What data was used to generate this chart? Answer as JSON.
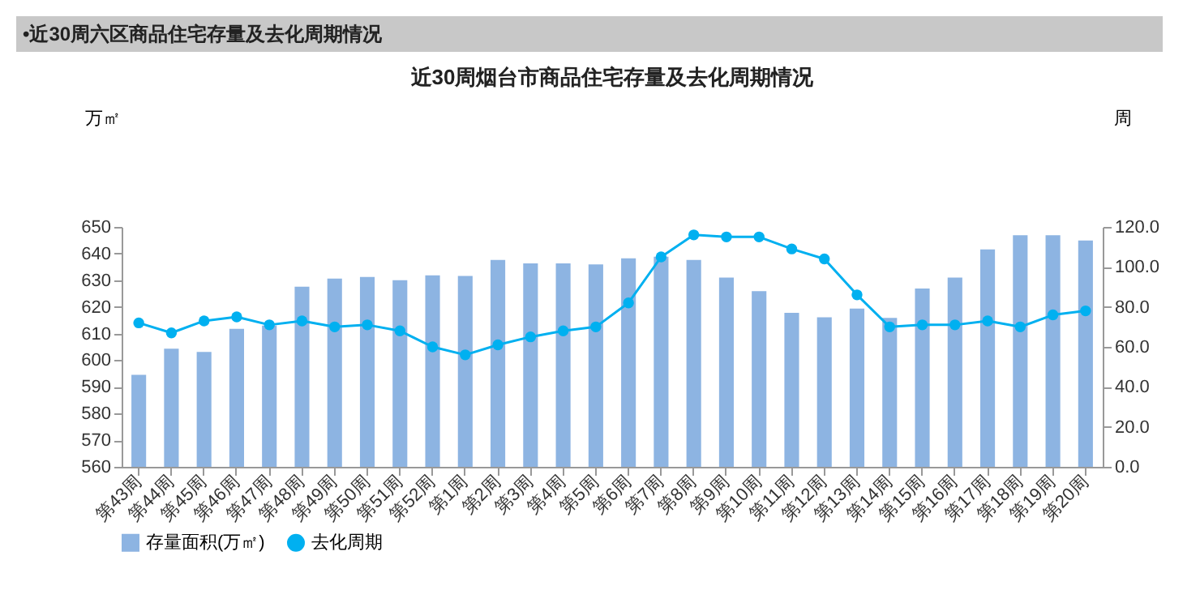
{
  "chart_data": {
    "type": "bar",
    "title": "•近30周六区商品住宅存量及去化周期情况",
    "subtitle": "近30周烟台市商品住宅存量及去化周期情况",
    "ylabel": "万㎡",
    "y2label": "周",
    "categories": [
      "第43周",
      "第44周",
      "第45周",
      "第46周",
      "第47周",
      "第48周",
      "第49周",
      "第50周",
      "第51周",
      "第52周",
      "第1周",
      "第2周",
      "第3周",
      "第4周",
      "第5周",
      "第6周",
      "第7周",
      "第8周",
      "第9周",
      "第10周",
      "第11周",
      "第12周",
      "第13周",
      "第14周",
      "第15周",
      "第16周",
      "第17周",
      "第18周",
      "第19周",
      "第20周"
    ],
    "series": [
      {
        "name": "存量面积(万㎡)",
        "color": "#8db4e2",
        "values": [
          594.5,
          604.3,
          603.1,
          611.8,
          613,
          627.6,
          630.6,
          631.2,
          630,
          631.8,
          631.6,
          637.6,
          636.3,
          636.3,
          635.9,
          638.2,
          638.8,
          637.6,
          631,
          625.9,
          617.8,
          616.1,
          619.4,
          615.9,
          626.9,
          631,
          641.6,
          646.9,
          646.9,
          644.9
        ]
      },
      {
        "name": "去化周期",
        "type": "line",
        "axis": "y2",
        "color": "#00b0f0",
        "marker": "circle",
        "values": [
          72,
          67,
          73,
          75,
          71,
          73,
          70,
          71,
          68,
          60,
          56,
          61,
          65,
          68,
          70,
          82,
          105,
          116,
          115,
          115,
          109,
          104,
          86,
          70,
          71,
          71,
          73,
          70,
          76,
          78
        ]
      }
    ],
    "ylim": [
      560,
      650
    ],
    "yticks": [
      560,
      570,
      580,
      590,
      600,
      610,
      620,
      630,
      640,
      650
    ],
    "y2lim": [
      0,
      120
    ],
    "y2ticks": [
      {
        "value": 0,
        "label": "0.0"
      },
      {
        "value": 20,
        "label": "20.0"
      },
      {
        "value": 40,
        "label": "40.0"
      },
      {
        "value": 60,
        "label": "60.0"
      },
      {
        "value": 80,
        "label": "80.0"
      },
      {
        "value": 100,
        "label": "100.0"
      },
      {
        "value": 120,
        "label": "120.0"
      }
    ],
    "legend": "bottom",
    "grid": false
  }
}
